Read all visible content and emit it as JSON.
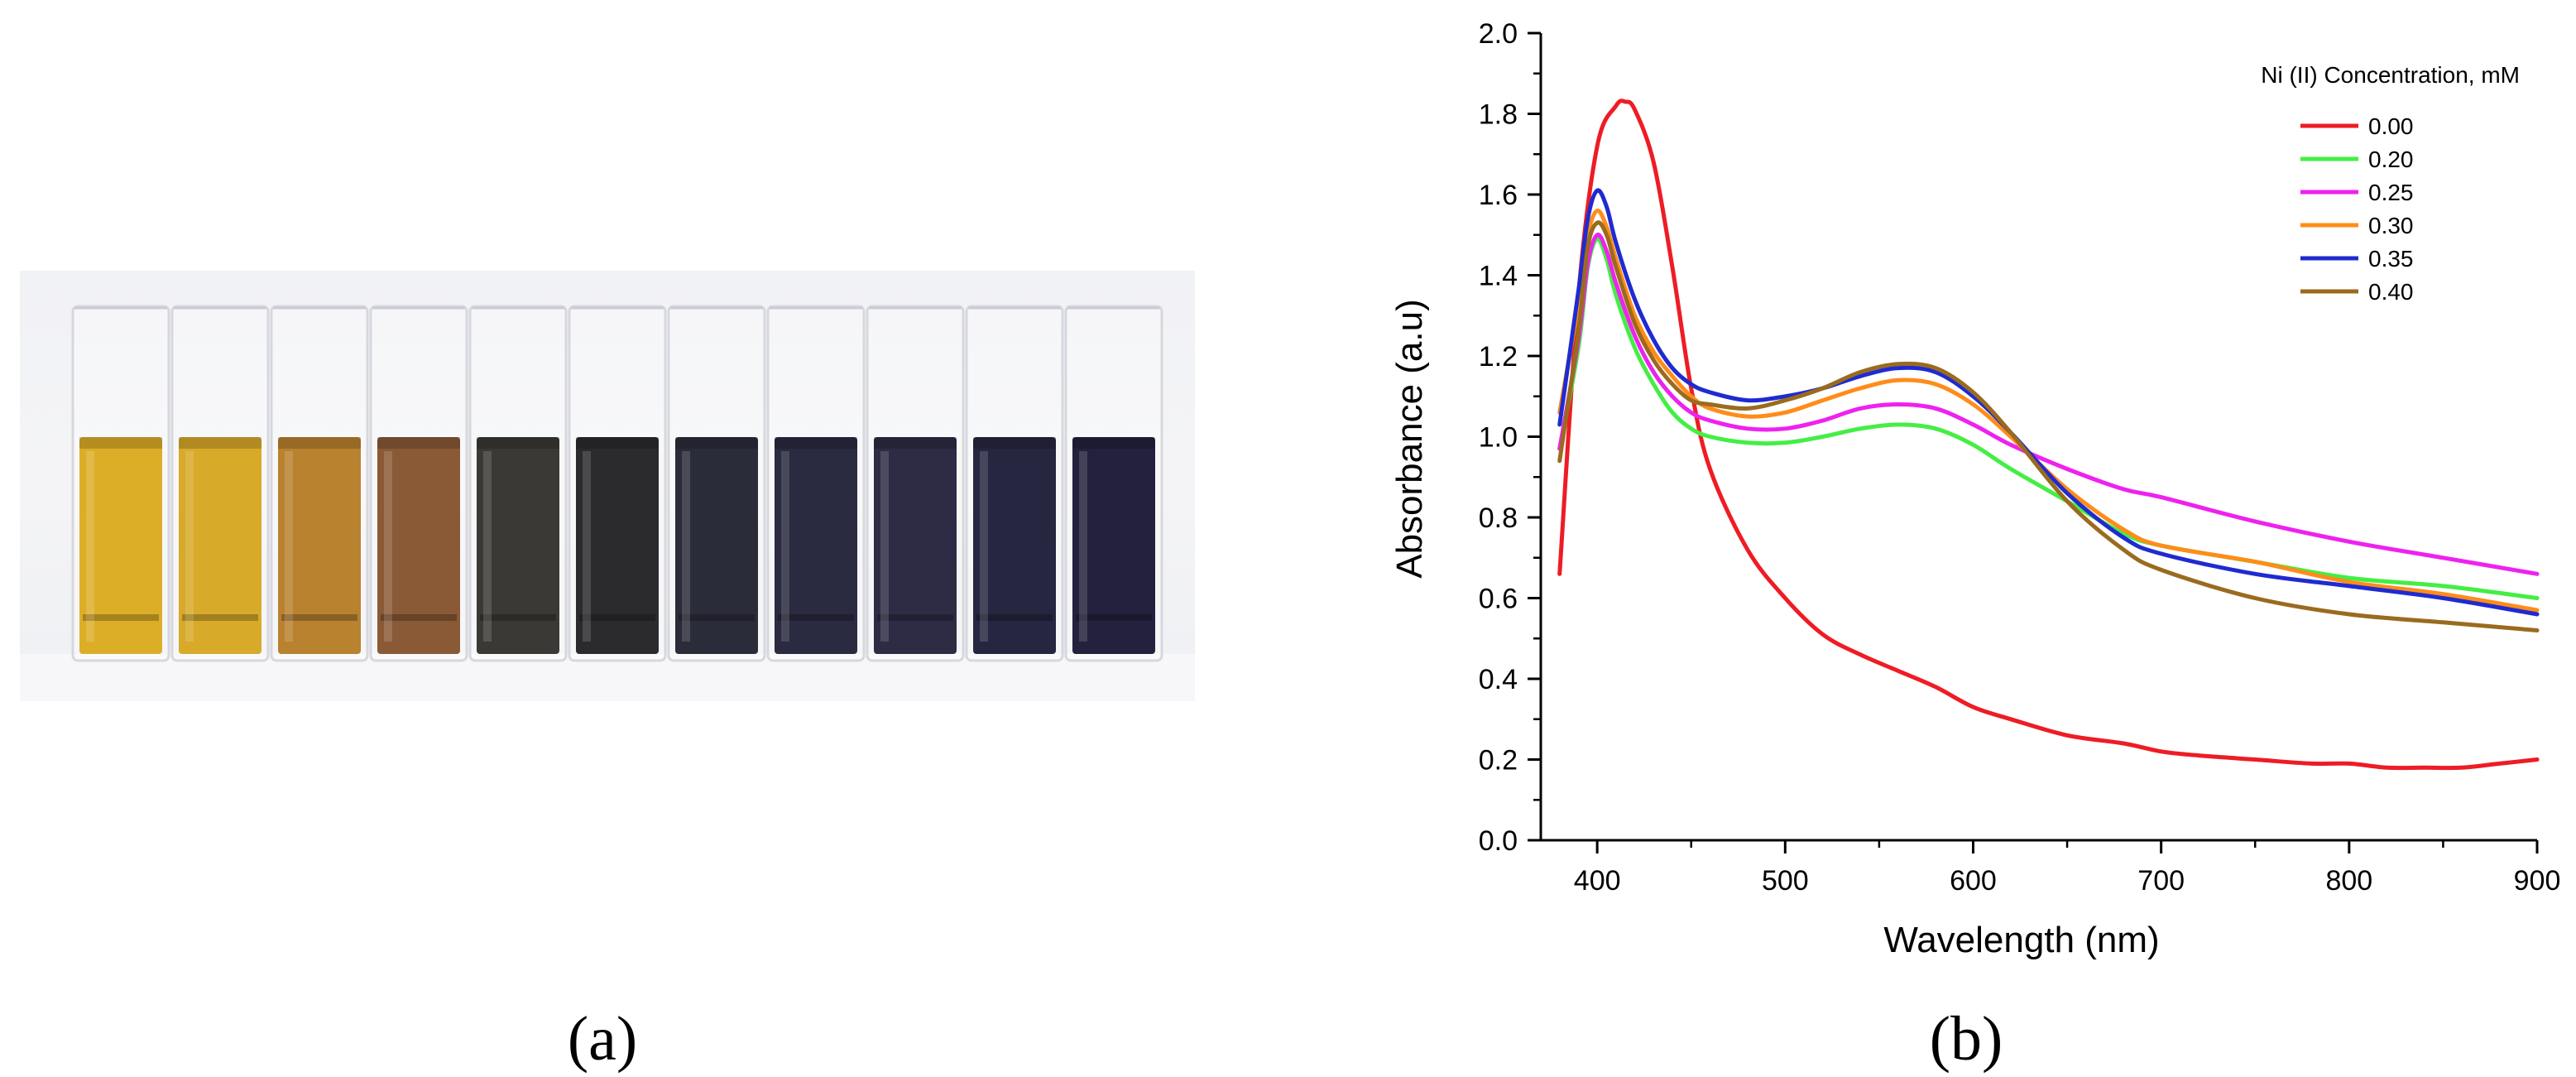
{
  "panels": {
    "a_label": "(a)",
    "b_label": "(b)"
  },
  "photo": {
    "vial_count": 11,
    "vial_colors": [
      "#dcae28",
      "#d8aa2a",
      "#b9822f",
      "#8a5a36",
      "#3a3935",
      "#2b2b2e",
      "#2b2c3a",
      "#2a2a40",
      "#2d2c44",
      "#262640",
      "#23213d"
    ]
  },
  "chart_data": {
    "type": "line",
    "title": "",
    "xlabel": "Wavelength (nm)",
    "ylabel": "Absorbance (a.u)",
    "xlim": [
      370,
      900
    ],
    "ylim": [
      0.0,
      2.0
    ],
    "xticks": [
      400,
      500,
      600,
      700,
      800,
      900
    ],
    "yticks": [
      0.0,
      0.2,
      0.4,
      0.6,
      0.8,
      1.0,
      1.2,
      1.4,
      1.6,
      1.8,
      2.0
    ],
    "ytick_labels": [
      "0.0",
      "0.2",
      "0.4",
      "0.6",
      "0.8",
      "1.0",
      "1.2",
      "1.4",
      "1.6",
      "1.8",
      "2.0"
    ],
    "legend_title": "Ni (II) Concentration, mM",
    "legend_position": "top-right",
    "grid": false,
    "series": [
      {
        "name": "0.00",
        "color": "#ee1c24",
        "x": [
          380,
          390,
          400,
          410,
          415,
          420,
          430,
          440,
          450,
          460,
          480,
          500,
          520,
          540,
          560,
          580,
          600,
          620,
          650,
          680,
          700,
          720,
          750,
          780,
          800,
          820,
          840,
          860,
          880,
          900
        ],
        "y": [
          0.66,
          1.35,
          1.72,
          1.82,
          1.83,
          1.81,
          1.68,
          1.42,
          1.12,
          0.92,
          0.72,
          0.6,
          0.51,
          0.46,
          0.42,
          0.38,
          0.33,
          0.3,
          0.26,
          0.24,
          0.22,
          0.21,
          0.2,
          0.19,
          0.19,
          0.18,
          0.18,
          0.18,
          0.19,
          0.2
        ]
      },
      {
        "name": "0.20",
        "color": "#44ee44",
        "x": [
          380,
          390,
          395,
          400,
          405,
          410,
          420,
          430,
          440,
          450,
          460,
          480,
          500,
          520,
          540,
          560,
          580,
          600,
          620,
          650,
          680,
          700,
          750,
          800,
          850,
          900
        ],
        "y": [
          0.97,
          1.22,
          1.42,
          1.49,
          1.44,
          1.35,
          1.22,
          1.13,
          1.06,
          1.02,
          1.0,
          0.985,
          0.985,
          1.0,
          1.02,
          1.03,
          1.02,
          0.98,
          0.92,
          0.84,
          0.76,
          0.73,
          0.69,
          0.65,
          0.63,
          0.6
        ]
      },
      {
        "name": "0.25",
        "color": "#ee22ee",
        "x": [
          380,
          390,
          395,
          400,
          405,
          410,
          420,
          430,
          440,
          450,
          460,
          480,
          500,
          520,
          540,
          560,
          580,
          600,
          620,
          650,
          680,
          700,
          750,
          800,
          850,
          900
        ],
        "y": [
          0.97,
          1.24,
          1.43,
          1.5,
          1.46,
          1.38,
          1.25,
          1.16,
          1.1,
          1.06,
          1.04,
          1.02,
          1.02,
          1.04,
          1.07,
          1.08,
          1.07,
          1.03,
          0.98,
          0.92,
          0.87,
          0.85,
          0.79,
          0.74,
          0.7,
          0.66
        ]
      },
      {
        "name": "0.30",
        "color": "#ff8c1a",
        "x": [
          380,
          390,
          395,
          400,
          405,
          410,
          420,
          430,
          440,
          450,
          460,
          480,
          500,
          520,
          540,
          560,
          580,
          600,
          620,
          650,
          680,
          700,
          750,
          800,
          850,
          900
        ],
        "y": [
          1.06,
          1.33,
          1.5,
          1.56,
          1.52,
          1.44,
          1.3,
          1.21,
          1.15,
          1.1,
          1.07,
          1.05,
          1.06,
          1.09,
          1.12,
          1.14,
          1.13,
          1.08,
          1.0,
          0.87,
          0.77,
          0.73,
          0.69,
          0.64,
          0.61,
          0.57
        ]
      },
      {
        "name": "0.35",
        "color": "#1f2bd0",
        "x": [
          380,
          390,
          395,
          400,
          405,
          410,
          420,
          430,
          440,
          450,
          460,
          480,
          500,
          520,
          540,
          560,
          580,
          600,
          620,
          650,
          680,
          700,
          750,
          800,
          850,
          900
        ],
        "y": [
          1.03,
          1.36,
          1.54,
          1.61,
          1.57,
          1.48,
          1.34,
          1.24,
          1.17,
          1.13,
          1.11,
          1.09,
          1.1,
          1.12,
          1.15,
          1.17,
          1.16,
          1.1,
          1.01,
          0.86,
          0.75,
          0.71,
          0.66,
          0.63,
          0.6,
          0.56
        ]
      },
      {
        "name": "0.40",
        "color": "#9a6b1e",
        "x": [
          380,
          390,
          395,
          400,
          405,
          410,
          420,
          430,
          440,
          450,
          460,
          480,
          500,
          520,
          540,
          560,
          580,
          600,
          620,
          650,
          680,
          700,
          750,
          800,
          850,
          900
        ],
        "y": [
          0.94,
          1.26,
          1.47,
          1.53,
          1.5,
          1.42,
          1.28,
          1.19,
          1.13,
          1.09,
          1.08,
          1.07,
          1.09,
          1.12,
          1.16,
          1.18,
          1.17,
          1.11,
          1.01,
          0.84,
          0.72,
          0.67,
          0.6,
          0.56,
          0.54,
          0.52
        ]
      }
    ]
  }
}
